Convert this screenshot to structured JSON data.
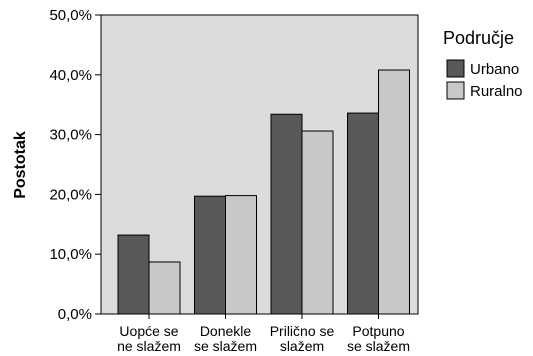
{
  "chart_data": {
    "type": "bar",
    "ylabel": "Postotak",
    "xlabel": "",
    "ylim": [
      0,
      50
    ],
    "yticks": [
      0,
      10,
      20,
      30,
      40,
      50
    ],
    "ytick_labels": [
      "0,0%",
      "10,0%",
      "20,0%",
      "30,0%",
      "40,0%",
      "50,0%"
    ],
    "categories": [
      [
        "Uopće se",
        "ne slažem"
      ],
      [
        "Donekle",
        "se slažem"
      ],
      [
        "Prilično se",
        "slažem"
      ],
      [
        "Potpuno",
        "se slažem"
      ]
    ],
    "legend_title": "Područje",
    "legend_position": "right",
    "grid": false,
    "series": [
      {
        "name": "Urbano",
        "values": [
          13.2,
          19.7,
          33.4,
          33.6
        ],
        "color": "#595959"
      },
      {
        "name": "Ruralno",
        "values": [
          8.7,
          19.8,
          30.6,
          40.8
        ],
        "color": "#c8c8c8"
      }
    ],
    "colors": {
      "plot_background": "#dcdcdc",
      "bar_edge": "#000000"
    }
  }
}
